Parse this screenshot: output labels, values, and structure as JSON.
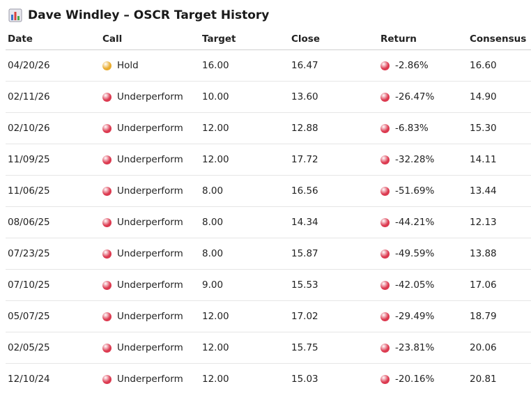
{
  "header": {
    "title": "Dave Windley – OSCR Target History"
  },
  "table": {
    "columns": [
      "Date",
      "Call",
      "Target",
      "Close",
      "Return",
      "Consensus"
    ],
    "rows": [
      [
        "04/20/26",
        "Hold",
        "16.00",
        "16.47",
        "-2.86%",
        "16.60"
      ],
      [
        "02/11/26",
        "Underperform",
        "10.00",
        "13.60",
        "-26.47%",
        "14.90"
      ],
      [
        "02/10/26",
        "Underperform",
        "12.00",
        "12.88",
        "-6.83%",
        "15.30"
      ],
      [
        "11/09/25",
        "Underperform",
        "12.00",
        "17.72",
        "-32.28%",
        "14.11"
      ],
      [
        "11/06/25",
        "Underperform",
        "8.00",
        "16.56",
        "-51.69%",
        "13.44"
      ],
      [
        "08/06/25",
        "Underperform",
        "8.00",
        "14.34",
        "-44.21%",
        "12.13"
      ],
      [
        "07/23/25",
        "Underperform",
        "8.00",
        "15.87",
        "-49.59%",
        "13.88"
      ],
      [
        "07/10/25",
        "Underperform",
        "9.00",
        "15.53",
        "-42.05%",
        "17.06"
      ],
      [
        "05/07/25",
        "Underperform",
        "12.00",
        "17.02",
        "-29.49%",
        "18.79"
      ],
      [
        "02/05/25",
        "Underperform",
        "12.00",
        "15.75",
        "-23.81%",
        "20.06"
      ],
      [
        "12/10/24",
        "Underperform",
        "12.00",
        "15.03",
        "-20.16%",
        "20.81"
      ]
    ],
    "call_colors": {
      "Hold": "#e9ac2f",
      "Underperform": "#dc3a50"
    },
    "return_color": "#dc3a50"
  }
}
